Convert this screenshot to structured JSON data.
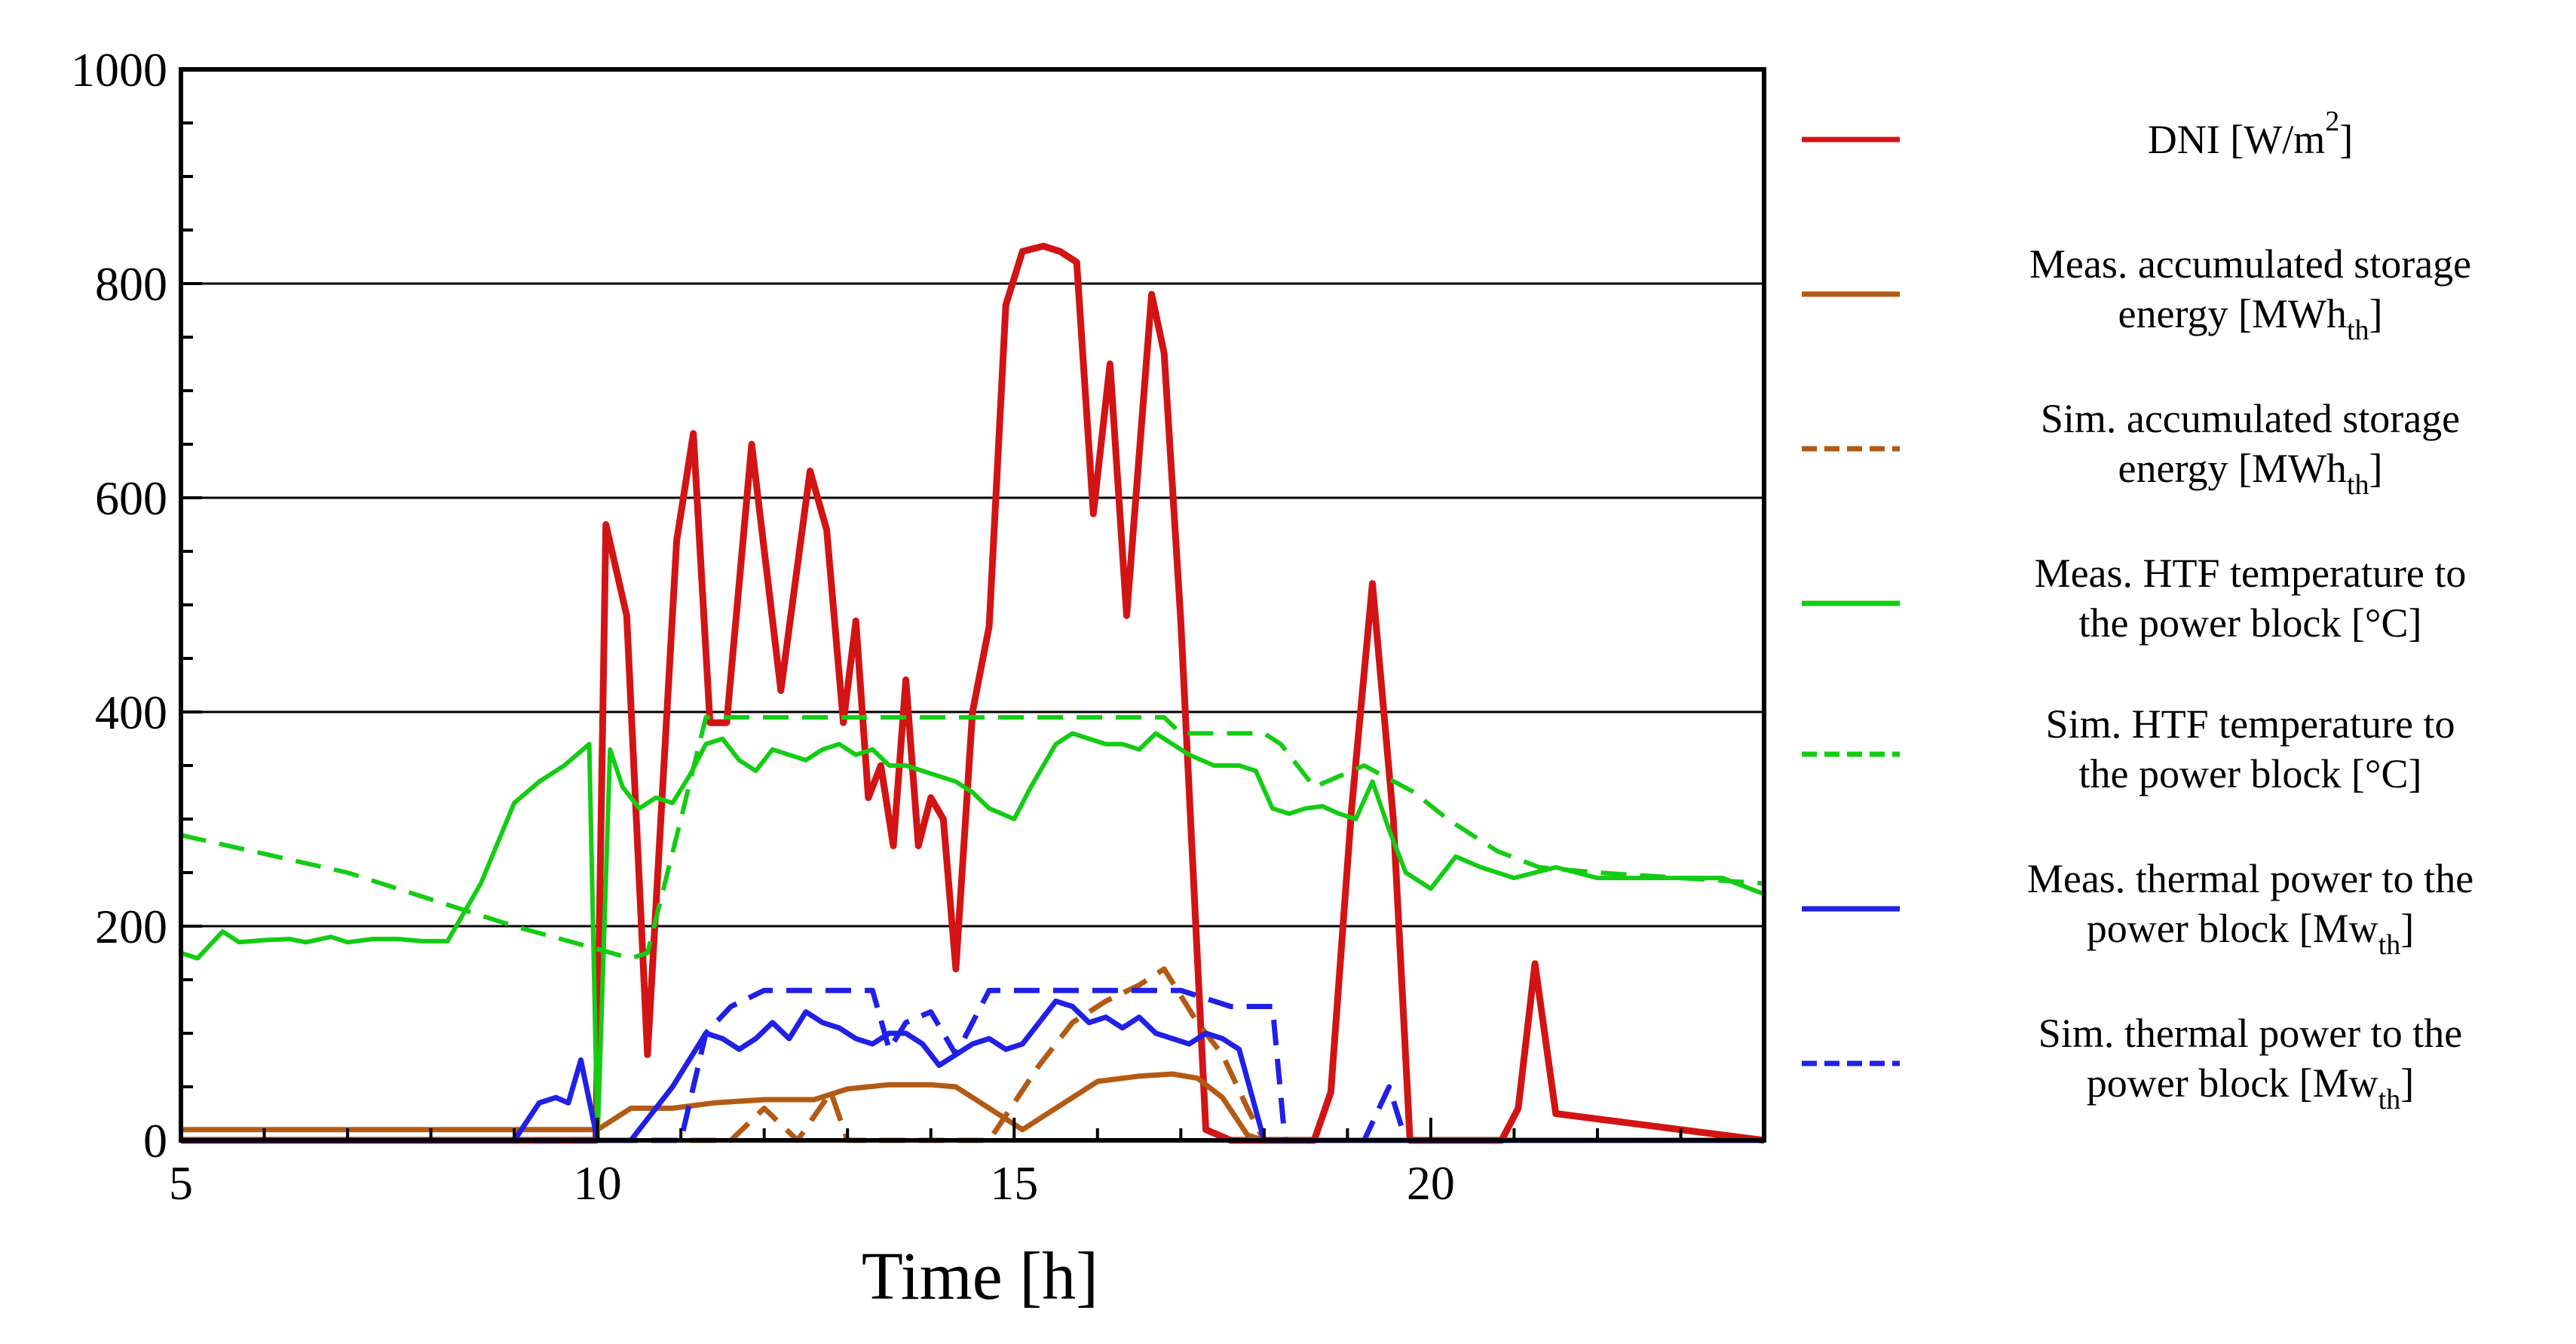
{
  "chart_data": {
    "type": "line",
    "xlabel": "Time [h]",
    "ylabel": "",
    "xlim": [
      5,
      24
    ],
    "ylim": [
      0,
      1000
    ],
    "xticks": [
      5,
      10,
      15,
      20
    ],
    "yticks": [
      0,
      200,
      400,
      600,
      800,
      1000
    ],
    "grid": "horizontal major lines",
    "legend_position": "right",
    "series": [
      {
        "name": "DNI [W/m2]",
        "legend_lines": [
          "DNI [W/m",
          "2",
          "]"
        ],
        "legend_style": "superscript",
        "color": "#d21414",
        "dash": "solid",
        "width": 9,
        "x": [
          5,
          9.98,
          10.1,
          10.35,
          10.6,
          10.95,
          11.15,
          11.35,
          11.55,
          11.85,
          12.2,
          12.55,
          12.75,
          12.95,
          13.1,
          13.25,
          13.4,
          13.55,
          13.7,
          13.85,
          14.0,
          14.15,
          14.3,
          14.5,
          14.7,
          14.9,
          15.1,
          15.35,
          15.55,
          15.75,
          15.95,
          16.15,
          16.35,
          16.5,
          16.65,
          16.8,
          17.0,
          17.3,
          17.6,
          17.8,
          18.1,
          18.4,
          18.6,
          18.8,
          19.05,
          19.3,
          19.55,
          19.75,
          20.0,
          20.25,
          20.45,
          20.65,
          20.85,
          21.05,
          21.25,
          21.5,
          24
        ],
        "y": [
          0,
          0,
          575,
          490,
          80,
          560,
          660,
          390,
          390,
          650,
          420,
          625,
          570,
          390,
          485,
          320,
          350,
          275,
          430,
          275,
          320,
          300,
          160,
          400,
          480,
          780,
          830,
          835,
          830,
          820,
          585,
          725,
          490,
          640,
          790,
          735,
          485,
          10,
          0,
          0,
          0,
          0,
          0,
          45,
          310,
          520,
          300,
          0,
          0,
          0,
          0,
          0,
          0,
          30,
          165,
          25,
          0
        ]
      },
      {
        "name": "Meas. accumulated storage energy [MWhth]",
        "legend_lines": [
          "Meas. accumulated storage",
          "energy [MWh",
          "th",
          "]"
        ],
        "legend_style": "subscript",
        "color": "#b35a14",
        "dash": "solid",
        "width": 7,
        "x": [
          5,
          10.0,
          10.4,
          10.9,
          11.4,
          12.0,
          12.6,
          13.0,
          13.5,
          14.0,
          14.3,
          14.6,
          14.9,
          15.1,
          15.5,
          16.0,
          16.5,
          16.9,
          17.2,
          17.5,
          17.8,
          18.0,
          24
        ],
        "y": [
          10,
          10,
          30,
          30,
          35,
          38,
          38,
          48,
          52,
          52,
          50,
          35,
          20,
          10,
          30,
          55,
          60,
          62,
          58,
          40,
          5,
          0,
          0
        ]
      },
      {
        "name": "Sim. accumulated storage energy [MWhth]",
        "legend_lines": [
          "Sim. accumulated storage",
          "energy [MWh",
          "th",
          "]"
        ],
        "legend_style": "subscript",
        "color": "#b35a14",
        "dash": "dashed",
        "width": 7,
        "x": [
          5,
          11.6,
          12.0,
          12.4,
          12.8,
          13.0,
          13.4,
          14.0,
          14.4,
          14.7,
          15.0,
          15.3,
          15.7,
          16.1,
          16.5,
          16.8,
          17.2,
          17.5,
          17.8,
          18.0,
          24
        ],
        "y": [
          0,
          0,
          30,
          0,
          45,
          0,
          0,
          0,
          0,
          0,
          35,
          70,
          110,
          130,
          145,
          160,
          110,
          80,
          30,
          0,
          0
        ]
      },
      {
        "name": "Meas. HTF temperature to the power block [°C]",
        "legend_lines": [
          "Meas. HTF temperature to",
          "the power block [°C]"
        ],
        "legend_style": "plain",
        "color": "#14cc14",
        "dash": "solid",
        "width": 6,
        "x": [
          5,
          5.2,
          5.5,
          5.7,
          6.0,
          6.3,
          6.5,
          6.8,
          7.0,
          7.3,
          7.6,
          7.9,
          8.2,
          8.6,
          9.0,
          9.3,
          9.6,
          9.9,
          10.0,
          10.15,
          10.3,
          10.5,
          10.7,
          10.9,
          11.1,
          11.3,
          11.5,
          11.7,
          11.9,
          12.1,
          12.3,
          12.5,
          12.7,
          12.9,
          13.1,
          13.3,
          13.5,
          13.7,
          13.9,
          14.1,
          14.3,
          14.5,
          14.7,
          15.0,
          15.2,
          15.5,
          15.7,
          15.9,
          16.1,
          16.3,
          16.5,
          16.7,
          16.9,
          17.1,
          17.4,
          17.7,
          17.9,
          18.1,
          18.3,
          18.5,
          18.7,
          18.9,
          19.1,
          19.3,
          19.5,
          19.7,
          20.0,
          20.3,
          20.6,
          21.0,
          21.5,
          22.0,
          22.5,
          23.0,
          23.5,
          24
        ],
        "y": [
          175,
          170,
          195,
          185,
          187,
          188,
          185,
          190,
          185,
          188,
          188,
          186,
          186,
          240,
          315,
          335,
          350,
          370,
          0,
          365,
          330,
          310,
          320,
          315,
          340,
          370,
          375,
          355,
          345,
          365,
          360,
          355,
          365,
          370,
          360,
          365,
          350,
          350,
          345,
          340,
          335,
          325,
          310,
          300,
          330,
          370,
          380,
          375,
          370,
          370,
          365,
          380,
          370,
          360,
          350,
          350,
          345,
          310,
          305,
          310,
          312,
          305,
          300,
          335,
          290,
          250,
          235,
          265,
          255,
          245,
          255,
          245,
          245,
          245,
          245,
          230
        ]
      },
      {
        "name": "Sim. HTF temperature to the power block [°C]",
        "legend_lines": [
          "Sim. HTF temperature to",
          "the power block [°C]"
        ],
        "legend_style": "plain",
        "color": "#14cc14",
        "dash": "dashed",
        "width": 6,
        "x": [
          5,
          7.0,
          9.0,
          10.4,
          10.6,
          11.0,
          11.3,
          11.6,
          12.0,
          13.0,
          14.0,
          15.0,
          16.0,
          16.8,
          17.0,
          17.5,
          18.0,
          18.2,
          18.6,
          19.2,
          19.8,
          20.2,
          20.8,
          21.3,
          22.0,
          23.0,
          24
        ],
        "y": [
          285,
          250,
          200,
          170,
          175,
          300,
          395,
          395,
          395,
          395,
          395,
          395,
          395,
          395,
          380,
          380,
          380,
          370,
          330,
          350,
          325,
          300,
          270,
          255,
          250,
          245,
          240
        ]
      },
      {
        "name": "Meas. thermal power to the power block [Mwth]",
        "legend_lines": [
          "Meas. thermal power to the",
          "power block [Mw",
          "th",
          "]"
        ],
        "legend_style": "subscript",
        "color": "#2020e6",
        "dash": "solid",
        "width": 7,
        "x": [
          5,
          9.0,
          9.3,
          9.5,
          9.65,
          9.8,
          10.0,
          10.4,
          10.7,
          10.9,
          11.1,
          11.3,
          11.5,
          11.7,
          11.9,
          12.1,
          12.3,
          12.5,
          12.7,
          12.9,
          13.1,
          13.3,
          13.5,
          13.7,
          13.9,
          14.1,
          14.3,
          14.5,
          14.7,
          14.9,
          15.1,
          15.3,
          15.5,
          15.7,
          15.9,
          16.1,
          16.3,
          16.5,
          16.7,
          16.9,
          17.1,
          17.3,
          17.5,
          17.7,
          18.0,
          24
        ],
        "y": [
          0,
          0,
          35,
          40,
          35,
          75,
          0,
          0,
          30,
          50,
          75,
          100,
          95,
          85,
          95,
          110,
          95,
          120,
          110,
          105,
          95,
          90,
          100,
          100,
          90,
          70,
          80,
          90,
          95,
          85,
          90,
          110,
          130,
          125,
          110,
          115,
          105,
          115,
          100,
          95,
          90,
          100,
          95,
          85,
          0,
          0
        ]
      },
      {
        "name": "Sim. thermal power to the power block [Mwth]",
        "legend_lines": [
          "Sim. thermal power to the",
          "power block [Mw",
          "th",
          "]"
        ],
        "legend_style": "subscript",
        "color": "#2020e6",
        "dash": "dashed",
        "width": 7,
        "x": [
          5,
          11.0,
          11.3,
          11.6,
          12.0,
          12.3,
          12.6,
          13.3,
          13.5,
          13.7,
          14.0,
          14.3,
          14.7,
          15.0,
          15.4,
          15.8,
          16.2,
          16.6,
          17.0,
          17.6,
          18.1,
          18.25,
          19.2,
          19.5,
          19.7,
          24
        ],
        "y": [
          0,
          0,
          100,
          125,
          140,
          140,
          140,
          140,
          85,
          110,
          120,
          80,
          140,
          140,
          140,
          140,
          140,
          140,
          140,
          125,
          125,
          0,
          0,
          50,
          0,
          0
        ]
      }
    ]
  }
}
